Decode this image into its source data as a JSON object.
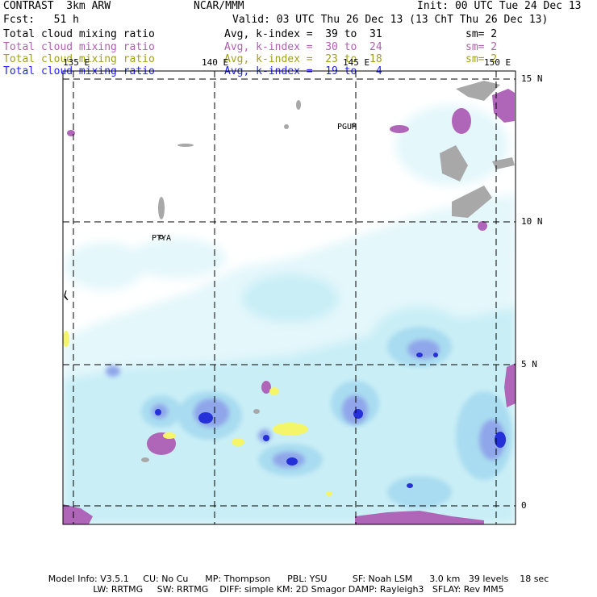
{
  "header": {
    "model_name": "CONTRAST  3km ARW",
    "center": "NCAR/MMM",
    "init": "Init: 00 UTC Tue 24 Dec 13",
    "fcst": "Fcst:   51 h",
    "valid": "Valid: 03 UTC Thu 26 Dec 13 (13 ChT Thu 26 Dec 13)"
  },
  "legend": [
    {
      "field": "Total cloud mixing ratio",
      "range": "Avg, k-index =  39 to  31",
      "smooth": "sm= 2",
      "color": "#000000"
    },
    {
      "field": "Total cloud mixing ratio",
      "range": "Avg, k-index =  30 to  24",
      "smooth": "sm= 2",
      "color": "#b060b0"
    },
    {
      "field": "Total cloud mixing ratio",
      "range": "Avg, k-index =  23 to  18",
      "smooth": "sm= 2",
      "color": "#a0a020"
    },
    {
      "field": "Total cloud mixing ratio",
      "range": "Avg, k-index =  19 to   4",
      "smooth": "",
      "color": "#2020ff"
    }
  ],
  "axes": {
    "lon_labels": [
      "135 E",
      "140 E",
      "145 E",
      "150 E"
    ],
    "lat_labels": [
      "15 N",
      "10 N",
      "5 N",
      "0"
    ]
  },
  "stations": [
    "PGUM",
    "PTYA"
  ],
  "footer": {
    "line1": "Model Info: V3.5.1     CU: No Cu      MP: Thompson      PBL: YSU         SF: Noah LSM      3.0 km   39 levels    18 sec",
    "line2": "LW: RRTMG     SW: RRTMG    DIFF: simple KM: 2D Smagor DAMP: Rayleigh3   SFLAY: Rev MM5"
  }
}
